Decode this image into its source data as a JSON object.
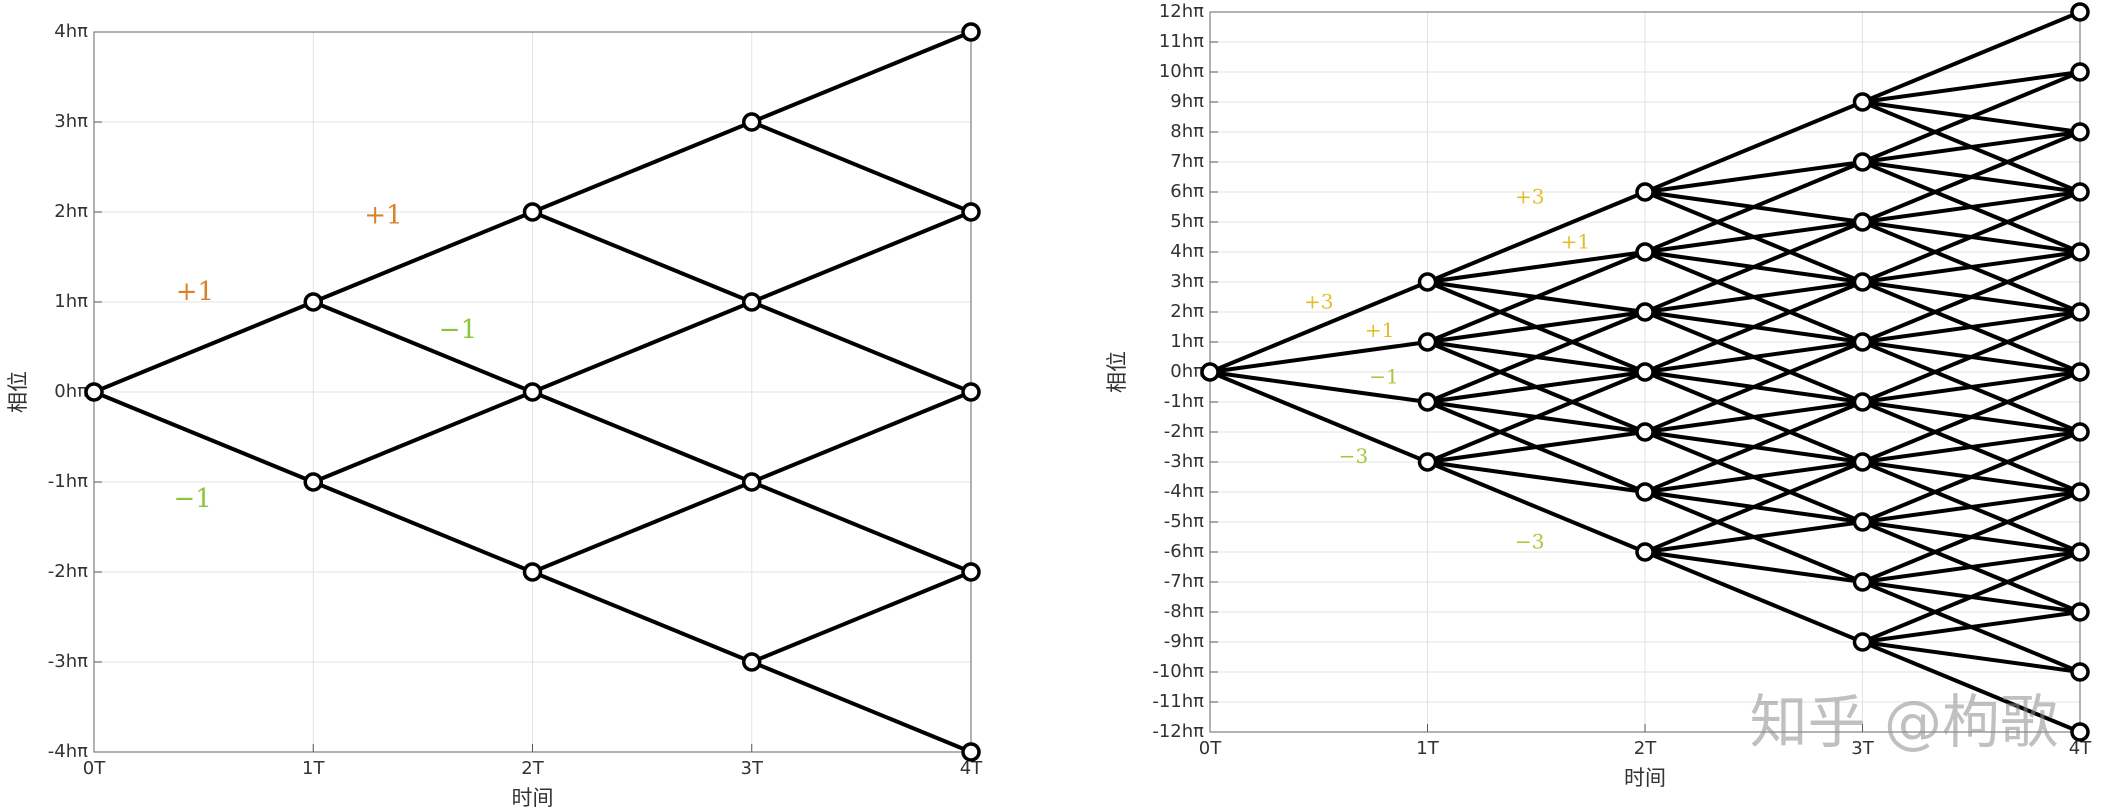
{
  "chart_data": [
    {
      "type": "trellis",
      "xlabel": "时间",
      "ylabel": "相位",
      "xlim": [
        0,
        4
      ],
      "ylim": [
        -4,
        4
      ],
      "xticks": [
        {
          "value": 0,
          "label": "0T"
        },
        {
          "value": 1,
          "label": "1T"
        },
        {
          "value": 2,
          "label": "2T"
        },
        {
          "value": 3,
          "label": "3T"
        },
        {
          "value": 4,
          "label": "4T"
        }
      ],
      "yticks": [
        {
          "value": -4,
          "label": "-4hπ"
        },
        {
          "value": -3,
          "label": "-3hπ"
        },
        {
          "value": -2,
          "label": "-2hπ"
        },
        {
          "value": -1,
          "label": "-1hπ"
        },
        {
          "value": 0,
          "label": "0hπ"
        },
        {
          "value": 1,
          "label": "1hπ"
        },
        {
          "value": 2,
          "label": "2hπ"
        },
        {
          "value": 3,
          "label": "3hπ"
        },
        {
          "value": 4,
          "label": "4hπ"
        }
      ],
      "grid": true,
      "color": "#000000",
      "nodes": [
        [
          0,
          0
        ],
        [
          1,
          1
        ],
        [
          1,
          -1
        ],
        [
          2,
          2
        ],
        [
          2,
          0
        ],
        [
          2,
          -2
        ],
        [
          3,
          3
        ],
        [
          3,
          1
        ],
        [
          3,
          -1
        ],
        [
          3,
          -3
        ],
        [
          4,
          4
        ],
        [
          4,
          2
        ],
        [
          4,
          0
        ],
        [
          4,
          -2
        ],
        [
          4,
          -4
        ]
      ],
      "edges": [
        [
          0,
          0,
          1,
          1
        ],
        [
          0,
          0,
          1,
          -1
        ],
        [
          1,
          1,
          2,
          2
        ],
        [
          1,
          1,
          2,
          0
        ],
        [
          1,
          -1,
          2,
          0
        ],
        [
          1,
          -1,
          2,
          -2
        ],
        [
          2,
          2,
          3,
          3
        ],
        [
          2,
          2,
          3,
          1
        ],
        [
          2,
          0,
          3,
          1
        ],
        [
          2,
          0,
          3,
          -1
        ],
        [
          2,
          -2,
          3,
          -1
        ],
        [
          2,
          -2,
          3,
          -3
        ],
        [
          3,
          3,
          4,
          4
        ],
        [
          3,
          3,
          4,
          2
        ],
        [
          3,
          1,
          4,
          2
        ],
        [
          3,
          1,
          4,
          0
        ],
        [
          3,
          -1,
          4,
          0
        ],
        [
          3,
          -1,
          4,
          -2
        ],
        [
          3,
          -3,
          4,
          -2
        ],
        [
          3,
          -3,
          4,
          -4
        ]
      ],
      "annotations": [
        {
          "text": "+1",
          "x": 0.46,
          "y": 1.1,
          "color": "#d9822b"
        },
        {
          "text": "−1",
          "x": 0.45,
          "y": -1.2,
          "color": "#8cc43c"
        },
        {
          "text": "+1",
          "x": 1.32,
          "y": 1.95,
          "color": "#d9822b"
        },
        {
          "text": "−1",
          "x": 1.66,
          "y": 0.68,
          "color": "#8cc43c"
        }
      ]
    },
    {
      "type": "trellis",
      "xlabel": "时间",
      "ylabel": "相位",
      "xlim": [
        0,
        4
      ],
      "ylim": [
        -12,
        12
      ],
      "xticks": [
        {
          "value": 0,
          "label": "0T"
        },
        {
          "value": 1,
          "label": "1T"
        },
        {
          "value": 2,
          "label": "2T"
        },
        {
          "value": 3,
          "label": "3T"
        },
        {
          "value": 4,
          "label": "4T"
        }
      ],
      "yticks": [
        {
          "value": -12,
          "label": "-12hπ"
        },
        {
          "value": -11,
          "label": "-11hπ"
        },
        {
          "value": -10,
          "label": "-10hπ"
        },
        {
          "value": -9,
          "label": "-9hπ"
        },
        {
          "value": -8,
          "label": "-8hπ"
        },
        {
          "value": -7,
          "label": "-7hπ"
        },
        {
          "value": -6,
          "label": "-6hπ"
        },
        {
          "value": -5,
          "label": "-5hπ"
        },
        {
          "value": -4,
          "label": "-4hπ"
        },
        {
          "value": -3,
          "label": "-3hπ"
        },
        {
          "value": -2,
          "label": "-2hπ"
        },
        {
          "value": -1,
          "label": "-1hπ"
        },
        {
          "value": 0,
          "label": "0hπ"
        },
        {
          "value": 1,
          "label": "1hπ"
        },
        {
          "value": 2,
          "label": "2hπ"
        },
        {
          "value": 3,
          "label": "3hπ"
        },
        {
          "value": 4,
          "label": "4hπ"
        },
        {
          "value": 5,
          "label": "5hπ"
        },
        {
          "value": 6,
          "label": "6hπ"
        },
        {
          "value": 7,
          "label": "7hπ"
        },
        {
          "value": 8,
          "label": "8hπ"
        },
        {
          "value": 9,
          "label": "9hπ"
        },
        {
          "value": 10,
          "label": "10hπ"
        },
        {
          "value": 11,
          "label": "11hπ"
        },
        {
          "value": 12,
          "label": "12hπ"
        }
      ],
      "grid": true,
      "color": "#000000",
      "nodes": [
        [
          0,
          0
        ],
        [
          1,
          3
        ],
        [
          1,
          1
        ],
        [
          1,
          -1
        ],
        [
          1,
          -3
        ],
        [
          2,
          6
        ],
        [
          2,
          4
        ],
        [
          2,
          2
        ],
        [
          2,
          0
        ],
        [
          2,
          -2
        ],
        [
          2,
          -4
        ],
        [
          2,
          -6
        ],
        [
          3,
          9
        ],
        [
          3,
          7
        ],
        [
          3,
          5
        ],
        [
          3,
          3
        ],
        [
          3,
          1
        ],
        [
          3,
          -1
        ],
        [
          3,
          -3
        ],
        [
          3,
          -5
        ],
        [
          3,
          -7
        ],
        [
          3,
          -9
        ],
        [
          4,
          12
        ],
        [
          4,
          10
        ],
        [
          4,
          8
        ],
        [
          4,
          6
        ],
        [
          4,
          4
        ],
        [
          4,
          2
        ],
        [
          4,
          0
        ],
        [
          4,
          -2
        ],
        [
          4,
          -4
        ],
        [
          4,
          -6
        ],
        [
          4,
          -8
        ],
        [
          4,
          -10
        ],
        [
          4,
          -12
        ]
      ],
      "edges": [
        [
          0,
          0,
          1,
          3
        ],
        [
          0,
          0,
          1,
          1
        ],
        [
          0,
          0,
          1,
          -1
        ],
        [
          0,
          0,
          1,
          -3
        ],
        [
          1,
          3,
          2,
          6
        ],
        [
          1,
          3,
          2,
          4
        ],
        [
          1,
          3,
          2,
          2
        ],
        [
          1,
          3,
          2,
          0
        ],
        [
          1,
          1,
          2,
          4
        ],
        [
          1,
          1,
          2,
          2
        ],
        [
          1,
          1,
          2,
          0
        ],
        [
          1,
          1,
          2,
          -2
        ],
        [
          1,
          -1,
          2,
          2
        ],
        [
          1,
          -1,
          2,
          0
        ],
        [
          1,
          -1,
          2,
          -2
        ],
        [
          1,
          -1,
          2,
          -4
        ],
        [
          1,
          -3,
          2,
          0
        ],
        [
          1,
          -3,
          2,
          -2
        ],
        [
          1,
          -3,
          2,
          -4
        ],
        [
          1,
          -3,
          2,
          -6
        ],
        [
          2,
          6,
          3,
          9
        ],
        [
          2,
          6,
          3,
          7
        ],
        [
          2,
          6,
          3,
          5
        ],
        [
          2,
          6,
          3,
          3
        ],
        [
          2,
          4,
          3,
          7
        ],
        [
          2,
          4,
          3,
          5
        ],
        [
          2,
          4,
          3,
          3
        ],
        [
          2,
          4,
          3,
          1
        ],
        [
          2,
          2,
          3,
          5
        ],
        [
          2,
          2,
          3,
          3
        ],
        [
          2,
          2,
          3,
          1
        ],
        [
          2,
          2,
          3,
          -1
        ],
        [
          2,
          0,
          3,
          3
        ],
        [
          2,
          0,
          3,
          1
        ],
        [
          2,
          0,
          3,
          -1
        ],
        [
          2,
          0,
          3,
          -3
        ],
        [
          2,
          -2,
          3,
          1
        ],
        [
          2,
          -2,
          3,
          -1
        ],
        [
          2,
          -2,
          3,
          -3
        ],
        [
          2,
          -2,
          3,
          -5
        ],
        [
          2,
          -4,
          3,
          -1
        ],
        [
          2,
          -4,
          3,
          -3
        ],
        [
          2,
          -4,
          3,
          -5
        ],
        [
          2,
          -4,
          3,
          -7
        ],
        [
          2,
          -6,
          3,
          -3
        ],
        [
          2,
          -6,
          3,
          -5
        ],
        [
          2,
          -6,
          3,
          -7
        ],
        [
          2,
          -6,
          3,
          -9
        ],
        [
          3,
          9,
          4,
          12
        ],
        [
          3,
          9,
          4,
          10
        ],
        [
          3,
          9,
          4,
          8
        ],
        [
          3,
          9,
          4,
          6
        ],
        [
          3,
          7,
          4,
          10
        ],
        [
          3,
          7,
          4,
          8
        ],
        [
          3,
          7,
          4,
          6
        ],
        [
          3,
          7,
          4,
          4
        ],
        [
          3,
          5,
          4,
          8
        ],
        [
          3,
          5,
          4,
          6
        ],
        [
          3,
          5,
          4,
          4
        ],
        [
          3,
          5,
          4,
          2
        ],
        [
          3,
          3,
          4,
          6
        ],
        [
          3,
          3,
          4,
          4
        ],
        [
          3,
          3,
          4,
          2
        ],
        [
          3,
          3,
          4,
          0
        ],
        [
          3,
          1,
          4,
          4
        ],
        [
          3,
          1,
          4,
          2
        ],
        [
          3,
          1,
          4,
          0
        ],
        [
          3,
          1,
          4,
          -2
        ],
        [
          3,
          -1,
          4,
          2
        ],
        [
          3,
          -1,
          4,
          0
        ],
        [
          3,
          -1,
          4,
          -2
        ],
        [
          3,
          -1,
          4,
          -4
        ],
        [
          3,
          -3,
          4,
          0
        ],
        [
          3,
          -3,
          4,
          -2
        ],
        [
          3,
          -3,
          4,
          -4
        ],
        [
          3,
          -3,
          4,
          -6
        ],
        [
          3,
          -5,
          4,
          -2
        ],
        [
          3,
          -5,
          4,
          -4
        ],
        [
          3,
          -5,
          4,
          -6
        ],
        [
          3,
          -5,
          4,
          -8
        ],
        [
          3,
          -7,
          4,
          -4
        ],
        [
          3,
          -7,
          4,
          -6
        ],
        [
          3,
          -7,
          4,
          -8
        ],
        [
          3,
          -7,
          4,
          -10
        ],
        [
          3,
          -9,
          4,
          -6
        ],
        [
          3,
          -9,
          4,
          -8
        ],
        [
          3,
          -9,
          4,
          -10
        ],
        [
          3,
          -9,
          4,
          -12
        ]
      ],
      "annotations": [
        {
          "text": "+3",
          "x": 0.5,
          "y": 2.3,
          "color": "#e3bd2c"
        },
        {
          "text": "+1",
          "x": 0.78,
          "y": 1.35,
          "color": "#e3bd2c"
        },
        {
          "text": "−1",
          "x": 0.8,
          "y": -0.2,
          "color": "#a6c83c"
        },
        {
          "text": "−3",
          "x": 0.66,
          "y": -2.85,
          "color": "#a6c83c"
        },
        {
          "text": "+3",
          "x": 1.47,
          "y": 5.8,
          "color": "#e3bd2c"
        },
        {
          "text": "+1",
          "x": 1.68,
          "y": 4.3,
          "color": "#e3bd2c"
        },
        {
          "text": "−3",
          "x": 1.47,
          "y": -5.7,
          "color": "#a6c83c"
        }
      ],
      "watermark": "知乎 @枸歌"
    }
  ]
}
